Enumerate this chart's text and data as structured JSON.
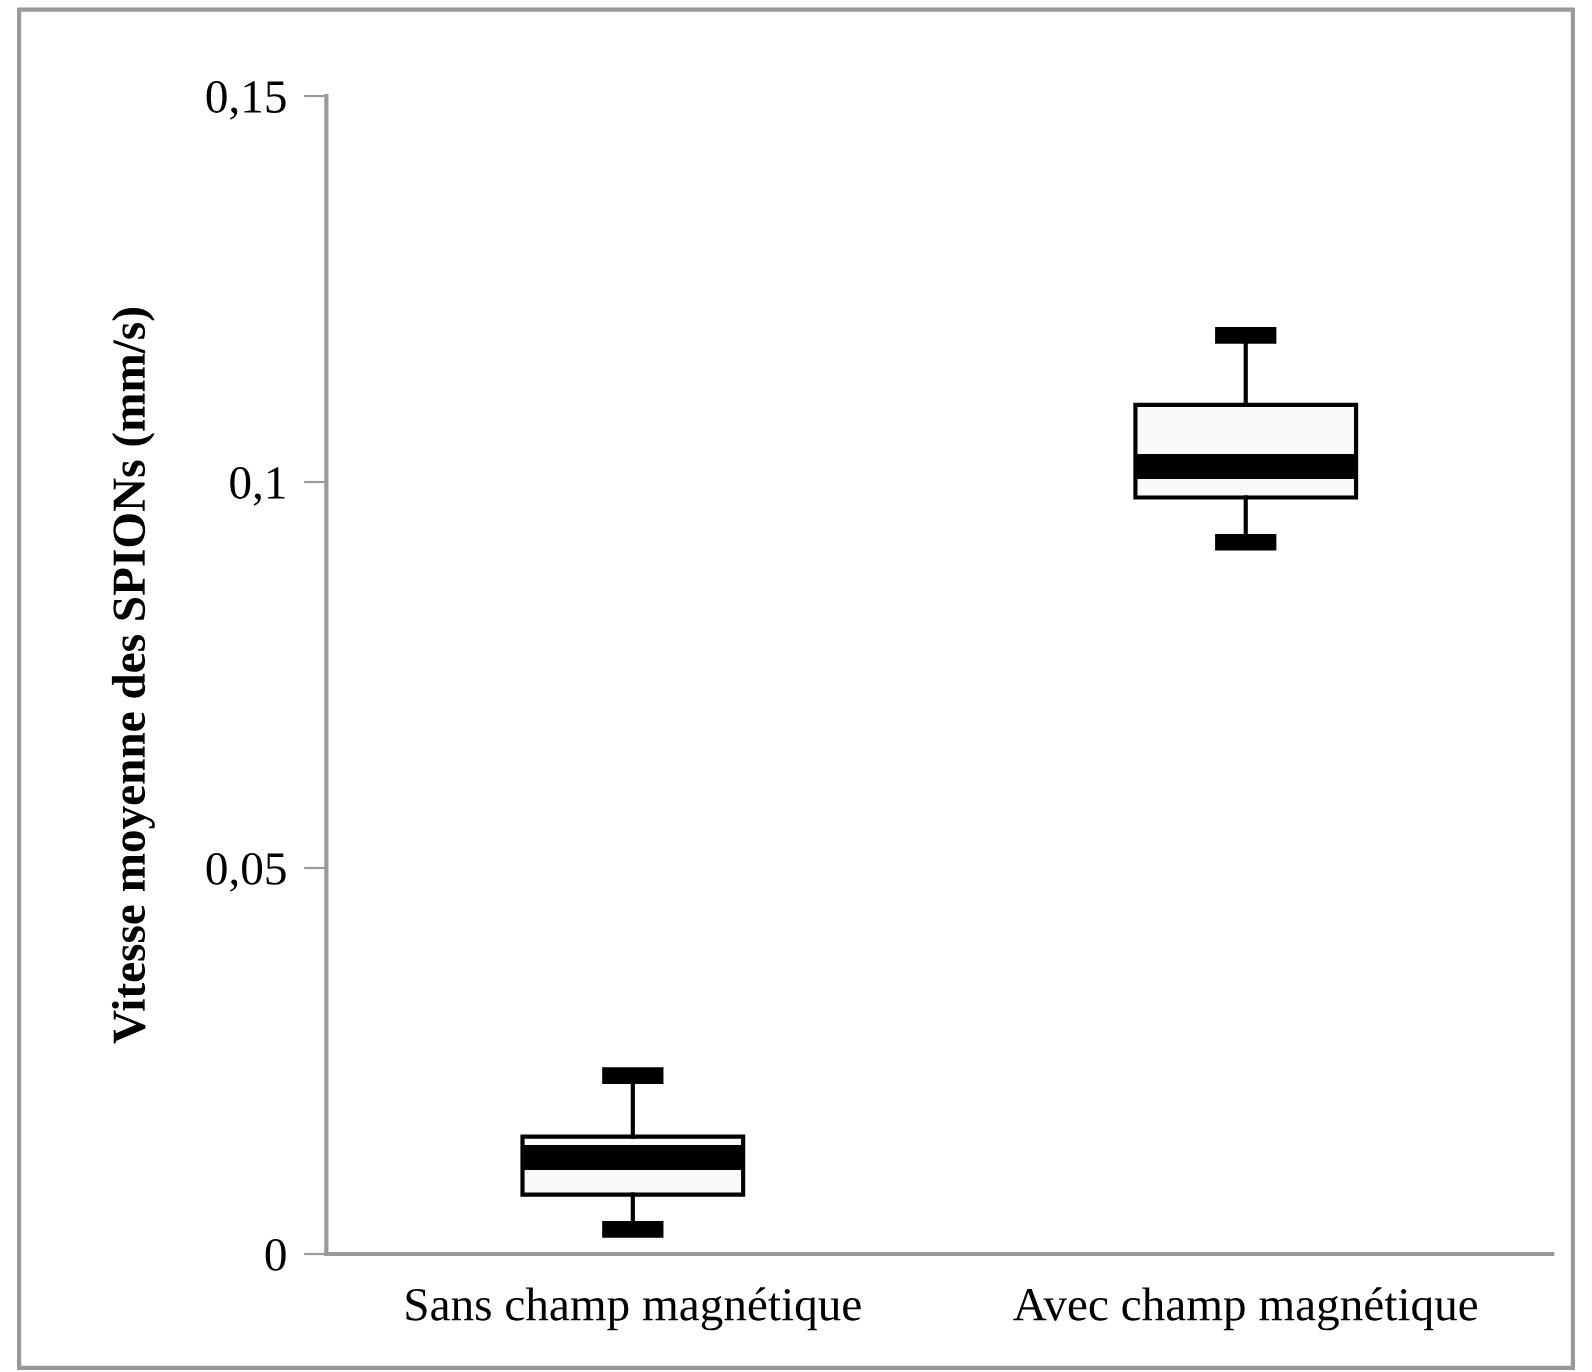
{
  "chart_data": {
    "type": "box",
    "ylabel": "Vitesse moyenne des SPIONs (mm/s)",
    "categories": [
      "Sans champ magnétique",
      "Avec champ magnétique"
    ],
    "boxes": [
      {
        "low": 0.0032,
        "q1": 0.0077,
        "median": 0.0125,
        "q3": 0.0152,
        "high": 0.0231
      },
      {
        "low": 0.0922,
        "q1": 0.098,
        "median": 0.102,
        "q3": 0.11,
        "high": 0.119
      }
    ],
    "ylim": [
      0,
      0.15
    ],
    "yticks": [
      {
        "value": 0,
        "label": "0"
      },
      {
        "value": 0.05,
        "label": "0,05"
      },
      {
        "value": 0.1,
        "label": "0,1"
      },
      {
        "value": 0.15,
        "label": "0,15"
      }
    ],
    "grid": false,
    "legend": false
  }
}
